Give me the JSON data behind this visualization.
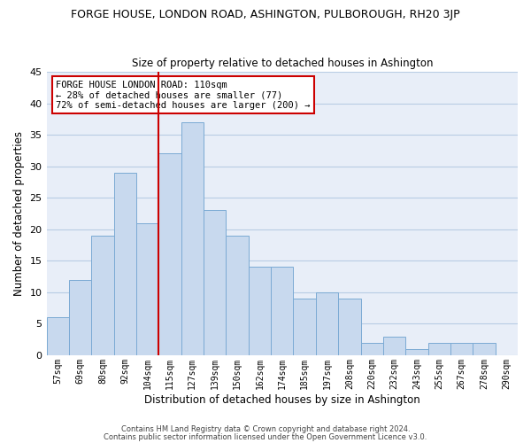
{
  "title": "FORGE HOUSE, LONDON ROAD, ASHINGTON, PULBOROUGH, RH20 3JP",
  "subtitle": "Size of property relative to detached houses in Ashington",
  "xlabel": "Distribution of detached houses by size in Ashington",
  "ylabel": "Number of detached properties",
  "bar_color": "#c8d9ee",
  "bar_edge_color": "#7baad4",
  "background_color": "#ffffff",
  "plot_bg_color": "#e8eef8",
  "grid_color": "#b8cce4",
  "categories": [
    "57sqm",
    "69sqm",
    "80sqm",
    "92sqm",
    "104sqm",
    "115sqm",
    "127sqm",
    "139sqm",
    "150sqm",
    "162sqm",
    "174sqm",
    "185sqm",
    "197sqm",
    "208sqm",
    "220sqm",
    "232sqm",
    "243sqm",
    "255sqm",
    "267sqm",
    "278sqm",
    "290sqm"
  ],
  "values": [
    6,
    12,
    19,
    29,
    21,
    32,
    37,
    23,
    19,
    14,
    14,
    9,
    10,
    9,
    2,
    3,
    1,
    2,
    2,
    2,
    0
  ],
  "ylim": [
    0,
    45
  ],
  "yticks": [
    0,
    5,
    10,
    15,
    20,
    25,
    30,
    35,
    40,
    45
  ],
  "vline_x_index": 4.5,
  "vline_color": "#cc0000",
  "annotation_title": "FORGE HOUSE LONDON ROAD: 110sqm",
  "annotation_line1": "← 28% of detached houses are smaller (77)",
  "annotation_line2": "72% of semi-detached houses are larger (200) →",
  "annotation_box_color": "#ffffff",
  "annotation_box_edge": "#cc0000",
  "footer1": "Contains HM Land Registry data © Crown copyright and database right 2024.",
  "footer2": "Contains public sector information licensed under the Open Government Licence v3.0."
}
